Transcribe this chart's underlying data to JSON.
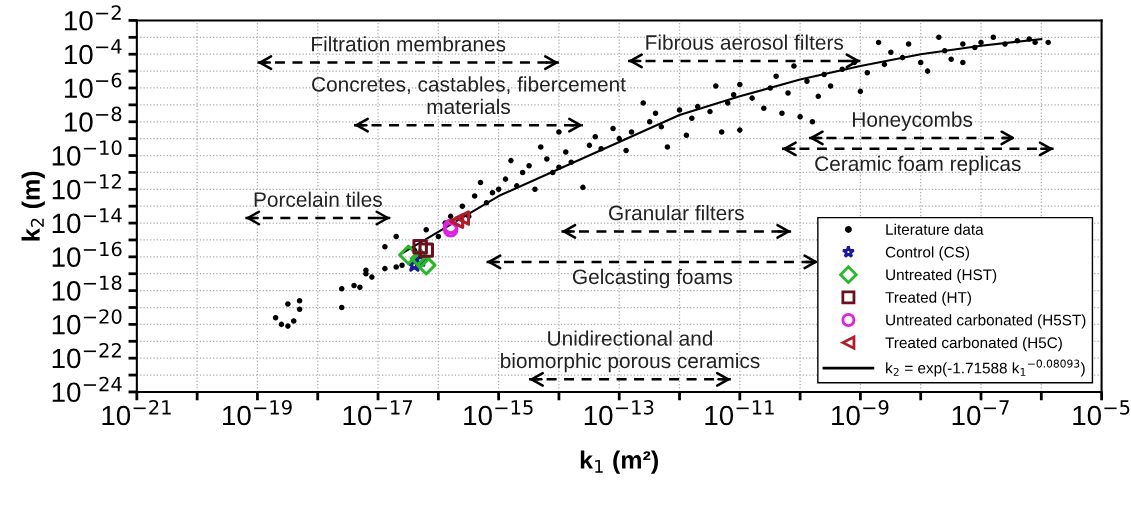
{
  "chart_data": {
    "type": "scatter",
    "xlabel": "k$_{1}$ (m²)",
    "ylabel": "k$_{2}$ (m)",
    "log": "xy",
    "grid": true,
    "legend": "bottom right",
    "xlim": [
      1e-21,
      1e-05
    ],
    "ylim": [
      1e-24,
      0.01
    ],
    "xticks": [
      {
        "value": 1e-21,
        "label": "10$^{−21}$"
      },
      {
        "value": 1e-20,
        "label": null
      },
      {
        "value": 1e-19,
        "label": "10$^{−19}$"
      },
      {
        "value": 1e-18,
        "label": null
      },
      {
        "value": 1e-17,
        "label": "10$^{−17}$"
      },
      {
        "value": 1e-16,
        "label": null
      },
      {
        "value": 1e-15,
        "label": "10$^{−15}$"
      },
      {
        "value": 1e-14,
        "label": null
      },
      {
        "value": 1e-13,
        "label": "10$^{−13}$"
      },
      {
        "value": 1e-12,
        "label": null
      },
      {
        "value": 1e-11,
        "label": "10$^{−11}$"
      },
      {
        "value": 1e-10,
        "label": null
      },
      {
        "value": 1e-09,
        "label": "10$^{−9}$"
      },
      {
        "value": 1e-08,
        "label": null
      },
      {
        "value": 1e-07,
        "label": "10$^{−7}$"
      },
      {
        "value": 1e-06,
        "label": null
      },
      {
        "value": 1e-05,
        "label": "10$^{−5}$"
      }
    ],
    "yticks": [
      {
        "value": 1e-24,
        "label": "10$^{−24}$"
      },
      {
        "value": 1e-23,
        "label": null
      },
      {
        "value": 1e-22,
        "label": "10$^{−22}$"
      },
      {
        "value": 1e-21,
        "label": null
      },
      {
        "value": 1e-20,
        "label": "10$^{−20}$"
      },
      {
        "value": 1e-19,
        "label": null
      },
      {
        "value": 1e-18,
        "label": "10$^{−18}$"
      },
      {
        "value": 1e-17,
        "label": null
      },
      {
        "value": 1e-16,
        "label": "10$^{−16}$"
      },
      {
        "value": 1e-15,
        "label": null
      },
      {
        "value": 1e-14,
        "label": "10$^{−14}$"
      },
      {
        "value": 1e-13,
        "label": null
      },
      {
        "value": 1e-12,
        "label": "10$^{−12}$"
      },
      {
        "value": 1e-11,
        "label": null
      },
      {
        "value": 1e-10,
        "label": "10$^{−10}$"
      },
      {
        "value": 1e-09,
        "label": null
      },
      {
        "value": 1e-08,
        "label": "10$^{−8}$"
      },
      {
        "value": 1e-07,
        "label": null
      },
      {
        "value": 1e-06,
        "label": "10$^{−6}$"
      },
      {
        "value": 1e-05,
        "label": null
      },
      {
        "value": 0.0001,
        "label": "10$^{−4}$"
      },
      {
        "value": 0.001,
        "label": null
      },
      {
        "value": 0.01,
        "label": "10$^{−2}$"
      }
    ],
    "series": [
      {
        "name": "Literature data",
        "marker": "circle",
        "color": "#000000",
        "x": [
          2e-19,
          3.2e-19,
          4e-19,
          5e-19,
          5e-19,
          3.2e-19,
          2.5e-19,
          2.5e-18,
          2.5e-18,
          4e-18,
          5e-18,
          6.3e-18,
          6.3e-18,
          7.9e-18,
          1.3e-17,
          1.3e-17,
          2e-17,
          2.5e-17,
          2e-17,
          4e-17,
          6.3e-17,
          1e-16,
          1.3e-16,
          1.6e-16,
          2.5e-16,
          3.2e-16,
          4e-16,
          5e-16,
          6.3e-16,
          7.9e-16,
          1e-15,
          1.3e-15,
          1.6e-15,
          2e-15,
          2.5e-15,
          3.2e-15,
          4e-15,
          5e-15,
          6.3e-15,
          7.9e-15,
          1e-14,
          1e-14,
          1.3e-14,
          1.6e-14,
          2.5e-14,
          3.2e-14,
          4e-14,
          5e-14,
          7.9e-14,
          1e-13,
          1.3e-13,
          1.6e-13,
          2.5e-13,
          3.2e-13,
          4e-13,
          5e-13,
          6.3e-13,
          1e-12,
          1.3e-12,
          1.6e-12,
          2e-12,
          3.2e-12,
          4e-12,
          5e-12,
          6.3e-12,
          7.9e-12,
          1e-11,
          1e-11,
          1.6e-11,
          2.5e-11,
          3.2e-11,
          4e-11,
          5e-11,
          6.3e-11,
          7.9e-11,
          1e-10,
          1.3e-10,
          1.6e-10,
          2e-10,
          2.5e-10,
          3.2e-10,
          5e-10,
          7.9e-10,
          1e-09,
          1.3e-09,
          2e-09,
          2.5e-09,
          3.2e-09,
          5e-09,
          6.3e-09,
          1e-08,
          1.3e-08,
          2e-08,
          2.5e-08,
          3.2e-08,
          5e-08,
          5e-08,
          7.9e-08,
          1e-07,
          1.6e-07,
          2.5e-07,
          4e-07,
          6.3e-07,
          7.9e-07,
          1.3e-06
        ],
        "values": [
          2.5e-20,
          7.9e-21,
          1.6e-20,
          7.9e-20,
          2.5e-19,
          1.6e-19,
          1e-20,
          1e-19,
          1.3e-18,
          2e-18,
          1.6e-18,
          1e-17,
          1.6e-17,
          6.3e-18,
          2e-17,
          4e-16,
          2.5e-17,
          3.2e-17,
          1.6e-15,
          2.5e-16,
          4e-15,
          1.6e-15,
          1e-14,
          2.5e-14,
          1e-13,
          2.5e-14,
          4e-13,
          2.5e-12,
          1.6e-13,
          6.3e-13,
          1e-12,
          4e-12,
          5e-11,
          1.6e-12,
          1e-11,
          2.5e-11,
          1e-12,
          3.2e-10,
          6.3e-11,
          1e-11,
          2.5e-09,
          2e-11,
          1.6e-10,
          4e-11,
          1.3e-12,
          4e-10,
          1.3e-09,
          2.5e-10,
          4e-09,
          1e-09,
          2e-10,
          2.5e-09,
          1.3e-07,
          1e-08,
          3.2e-08,
          5e-09,
          3.2e-10,
          5e-08,
          1.6e-09,
          1.6e-08,
          7.9e-08,
          4e-08,
          1.3e-06,
          2.5e-09,
          1.3e-07,
          4e-07,
          1.6e-06,
          3.2e-09,
          2.5e-07,
          6.3e-08,
          1e-06,
          5e-06,
          3.2e-08,
          5e-07,
          2e-05,
          2e-08,
          2.5e-06,
          1e-08,
          3.2e-07,
          6.3e-06,
          1.3e-06,
          1.3e-05,
          3.2e-05,
          6.3e-07,
          7.9e-06,
          0.0005,
          2.5e-05,
          0.00013,
          6.3e-05,
          0.0004,
          3.2e-05,
          1e-05,
          0.001,
          0.00016,
          5e-05,
          3.2e-05,
          0.0004,
          0.00025,
          0.0005,
          0.001,
          0.0004,
          0.00063,
          0.00079,
          0.0005,
          0.0005
        ]
      },
      {
        "name": "Control (CS)",
        "marker": "star",
        "color": "#1a1a9c",
        "x": [
          4e-17,
          5e-17
        ],
        "values": [
          3.2e-17,
          6.3e-17
        ]
      },
      {
        "name": "Untreated (HST)",
        "marker": "diamond",
        "color": "#2ab82a",
        "x": [
          3.2e-17,
          5e-17,
          6.3e-17
        ],
        "values": [
          1.3e-16,
          7.9e-17,
          3.2e-17
        ]
      },
      {
        "name": "Treated (HT)",
        "marker": "square",
        "color": "#6b1020",
        "x": [
          5e-17,
          6.3e-17
        ],
        "values": [
          4e-16,
          2.5e-16
        ]
      },
      {
        "name": "Untreated carbonated (H5ST)",
        "marker": "circle",
        "color": "#e020e0",
        "x": [
          1.6e-16,
          1.6e-16
        ],
        "values": [
          6.3e-15,
          4e-15
        ]
      },
      {
        "name": "Treated carbonated (H5C)",
        "marker": "triangle",
        "color": "#b01c2c",
        "x": [
          2e-16,
          2.5e-16
        ],
        "values": [
          1.3e-14,
          2e-14
        ]
      },
      {
        "name": "k$_{2}$ = exp(-1.71588 k$_{1}$$^{−0.08093}$)",
        "type": "line",
        "line_style": "solid",
        "color": "#000000",
        "x": [
          2.5e-17,
          1e-15,
          1e-14,
          1e-13,
          1e-12,
          1e-11,
          1e-10,
          1e-09,
          1e-08,
          1e-07,
          1e-06
        ],
        "values": [
          1.6e-16,
          4e-13,
          1.6e-11,
          6.3e-10,
          2.5e-08,
          3.2e-07,
          3.2e-06,
          2e-05,
          0.0001,
          0.00032,
          0.00079
        ]
      },
      {
        "name": "Filtration membranes",
        "type": "line",
        "line_style": "dashed",
        "color": "#000000",
        "x": [
          1e-19,
          1e-14
        ],
        "values": [
          3.2e-05,
          3.2e-05
        ]
      },
      {
        "name": "Concretes, castables, fibercement\nmaterials",
        "type": "line",
        "line_style": "dashed",
        "color": "#000000",
        "x": [
          4e-18,
          2.5e-14
        ],
        "values": [
          6.3e-09,
          6.3e-09
        ]
      },
      {
        "name": "Porcelain tiles",
        "type": "line",
        "line_style": "dashed",
        "color": "#000000",
        "x": [
          6.3e-20,
          1.6e-17
        ],
        "values": [
          2e-14,
          2e-14
        ]
      },
      {
        "name": "Fibrous aerosol filters",
        "type": "line",
        "line_style": "dashed",
        "color": "#000000",
        "x": [
          1.4e-13,
          1e-09
        ],
        "values": [
          4e-05,
          4e-05
        ]
      },
      {
        "name": "Honeycombs",
        "type": "line",
        "line_style": "dashed",
        "color": "#000000",
        "x": [
          1.4e-10,
          3.7e-07
        ],
        "values": [
          1.1e-09,
          1.1e-09
        ]
      },
      {
        "name": "Ceramic foam replicas",
        "type": "line",
        "line_style": "dashed",
        "color": "#000000",
        "x": [
          5e-11,
          1.6e-06
        ],
        "values": [
          2.5e-10,
          2.5e-10
        ]
      },
      {
        "name": "Granular filters",
        "type": "line",
        "line_style": "dashed",
        "color": "#000000",
        "x": [
          1.1e-14,
          7.1e-11
        ],
        "values": [
          3.2e-15,
          3.2e-15
        ]
      },
      {
        "name": "Gelcasting foams",
        "type": "line",
        "line_style": "dashed",
        "color": "#000000",
        "x": [
          6.3e-16,
          2e-10
        ],
        "values": [
          5e-17,
          5e-17
        ]
      },
      {
        "name": "Unidirectional and\nbiomorphic porous ceramics",
        "type": "line",
        "line_style": "dashed",
        "color": "#000000",
        "x": [
          3.2e-15,
          7.1e-12
        ],
        "values": [
          5.6e-24,
          5.6e-24
        ]
      }
    ]
  }
}
